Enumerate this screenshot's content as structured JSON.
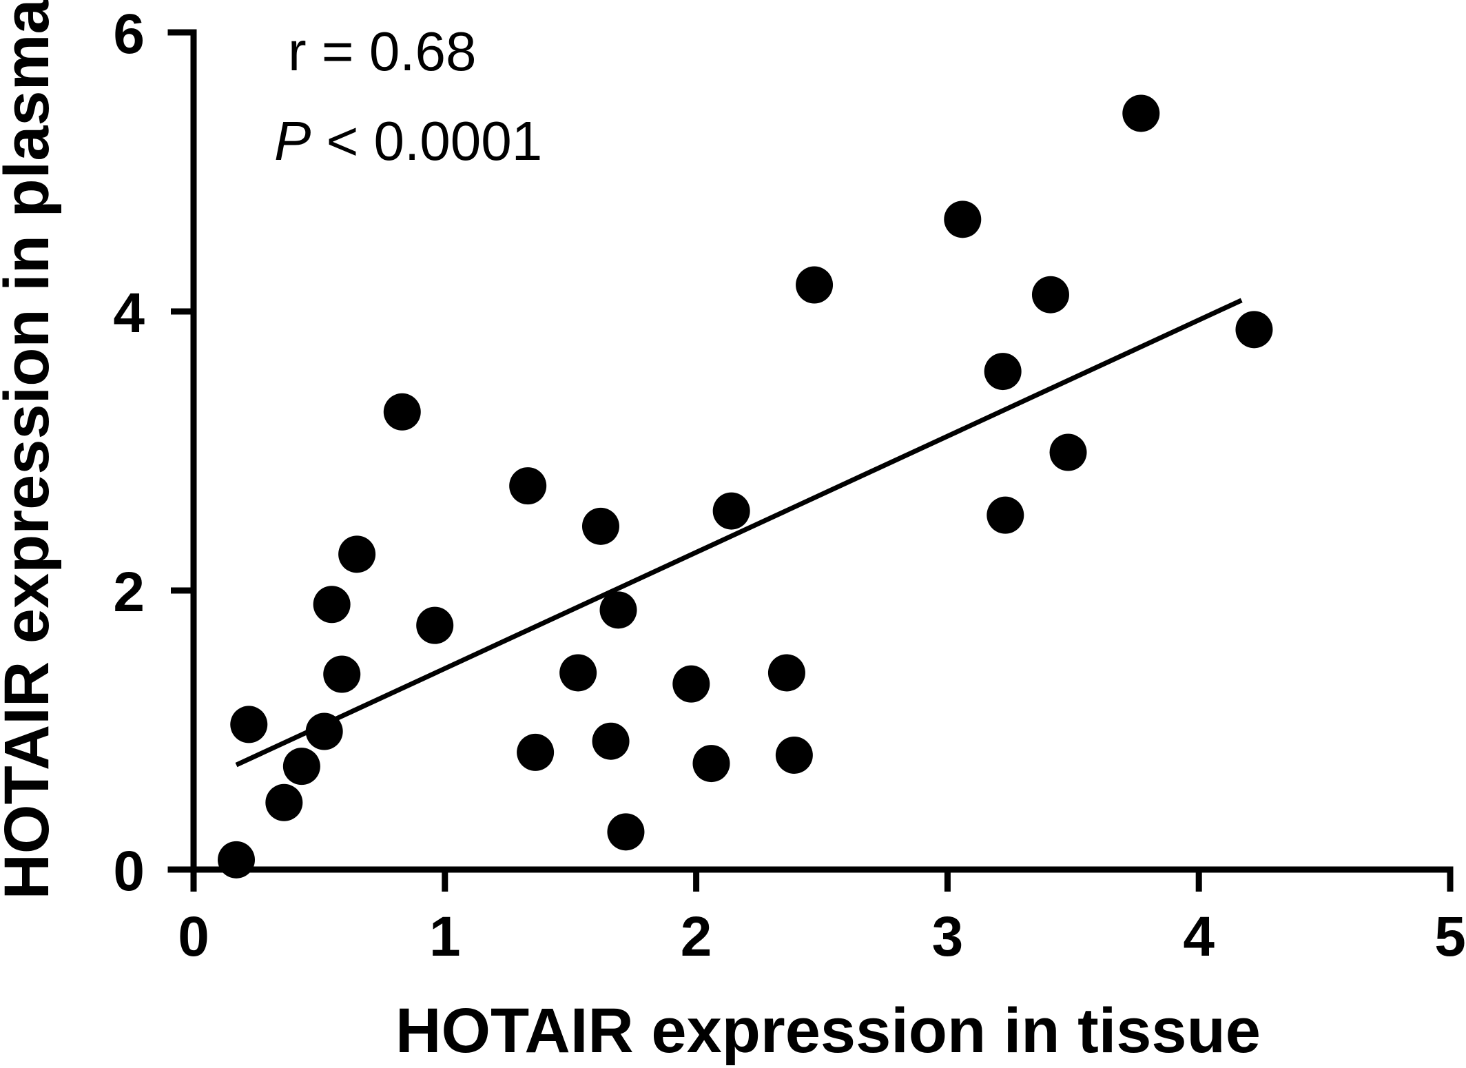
{
  "chart_data": {
    "type": "scatter",
    "xlabel": "HOTAIR expression in tissue",
    "ylabel": "HOTAIR expression in plasma",
    "xlim": [
      0,
      5
    ],
    "ylim": [
      0,
      6
    ],
    "x_ticks": [
      "0",
      "1",
      "2",
      "3",
      "4",
      "5"
    ],
    "y_ticks": [
      "0",
      "2",
      "4",
      "6"
    ],
    "grid": false,
    "annotations": {
      "r_text": "r = 0.68",
      "p_symbol": "P",
      "p_text": " < 0.0001"
    },
    "points": [
      {
        "x": 0.17,
        "y": 0.07
      },
      {
        "x": 0.22,
        "y": 1.04
      },
      {
        "x": 0.36,
        "y": 0.48
      },
      {
        "x": 0.43,
        "y": 0.74
      },
      {
        "x": 0.52,
        "y": 0.99
      },
      {
        "x": 0.55,
        "y": 1.9
      },
      {
        "x": 0.59,
        "y": 1.4
      },
      {
        "x": 0.65,
        "y": 2.26
      },
      {
        "x": 0.83,
        "y": 3.28
      },
      {
        "x": 0.96,
        "y": 1.75
      },
      {
        "x": 1.33,
        "y": 2.75
      },
      {
        "x": 1.36,
        "y": 0.84
      },
      {
        "x": 1.53,
        "y": 1.41
      },
      {
        "x": 1.62,
        "y": 2.46
      },
      {
        "x": 1.66,
        "y": 0.92
      },
      {
        "x": 1.69,
        "y": 1.86
      },
      {
        "x": 1.72,
        "y": 0.27
      },
      {
        "x": 1.98,
        "y": 1.33
      },
      {
        "x": 2.06,
        "y": 0.76
      },
      {
        "x": 2.14,
        "y": 2.57
      },
      {
        "x": 2.36,
        "y": 1.41
      },
      {
        "x": 2.39,
        "y": 0.82
      },
      {
        "x": 2.47,
        "y": 4.19
      },
      {
        "x": 3.06,
        "y": 4.66
      },
      {
        "x": 3.22,
        "y": 3.57
      },
      {
        "x": 3.23,
        "y": 2.54
      },
      {
        "x": 3.41,
        "y": 4.12
      },
      {
        "x": 3.48,
        "y": 2.99
      },
      {
        "x": 3.77,
        "y": 5.42
      },
      {
        "x": 4.22,
        "y": 3.87
      }
    ],
    "fit_line": {
      "x": [
        0.17,
        4.17
      ],
      "y": [
        0.75,
        4.08
      ]
    }
  }
}
